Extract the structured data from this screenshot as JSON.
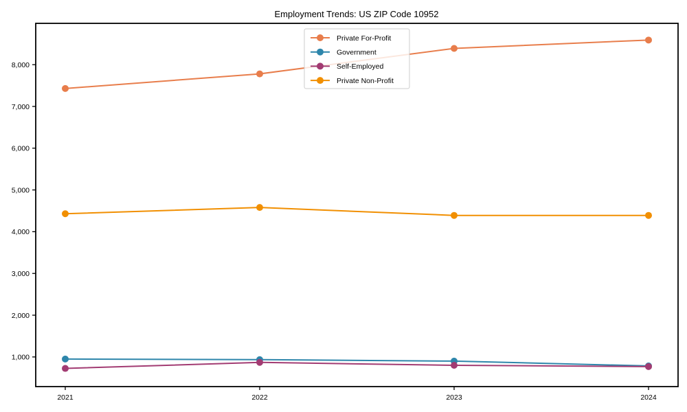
{
  "figure": {
    "background": "#ffffff",
    "axis_color": "#000000"
  },
  "chart_data": {
    "type": "line",
    "title": "Employment Trends: US ZIP Code 10952",
    "xlabel": "",
    "ylabel": "",
    "categories": [
      "2021",
      "2022",
      "2023",
      "2024"
    ],
    "series": [
      {
        "name": "Private For-Profit",
        "color": "#e87d4b",
        "values": [
          7430,
          7780,
          8390,
          8590
        ]
      },
      {
        "name": "Government",
        "color": "#2e86ab",
        "values": [
          950,
          935,
          900,
          785
        ]
      },
      {
        "name": "Self-Employed",
        "color": "#a23b72",
        "values": [
          725,
          870,
          800,
          770
        ]
      },
      {
        "name": "Private Non-Profit",
        "color": "#f18f01",
        "values": [
          4430,
          4580,
          4390,
          4390
        ]
      }
    ],
    "yticks": [
      1000,
      2000,
      3000,
      4000,
      5000,
      6000,
      7000,
      8000
    ],
    "ytick_labels": [
      "1,000",
      "2,000",
      "3,000",
      "4,000",
      "5,000",
      "6,000",
      "7,000",
      "8,000"
    ],
    "ylim": [
      290,
      8990
    ],
    "grid": false,
    "marker": "circle",
    "legend": {
      "position": "upper center",
      "background": "#ffffff",
      "border_color": "#cccccc",
      "opacity": 0.82
    }
  }
}
